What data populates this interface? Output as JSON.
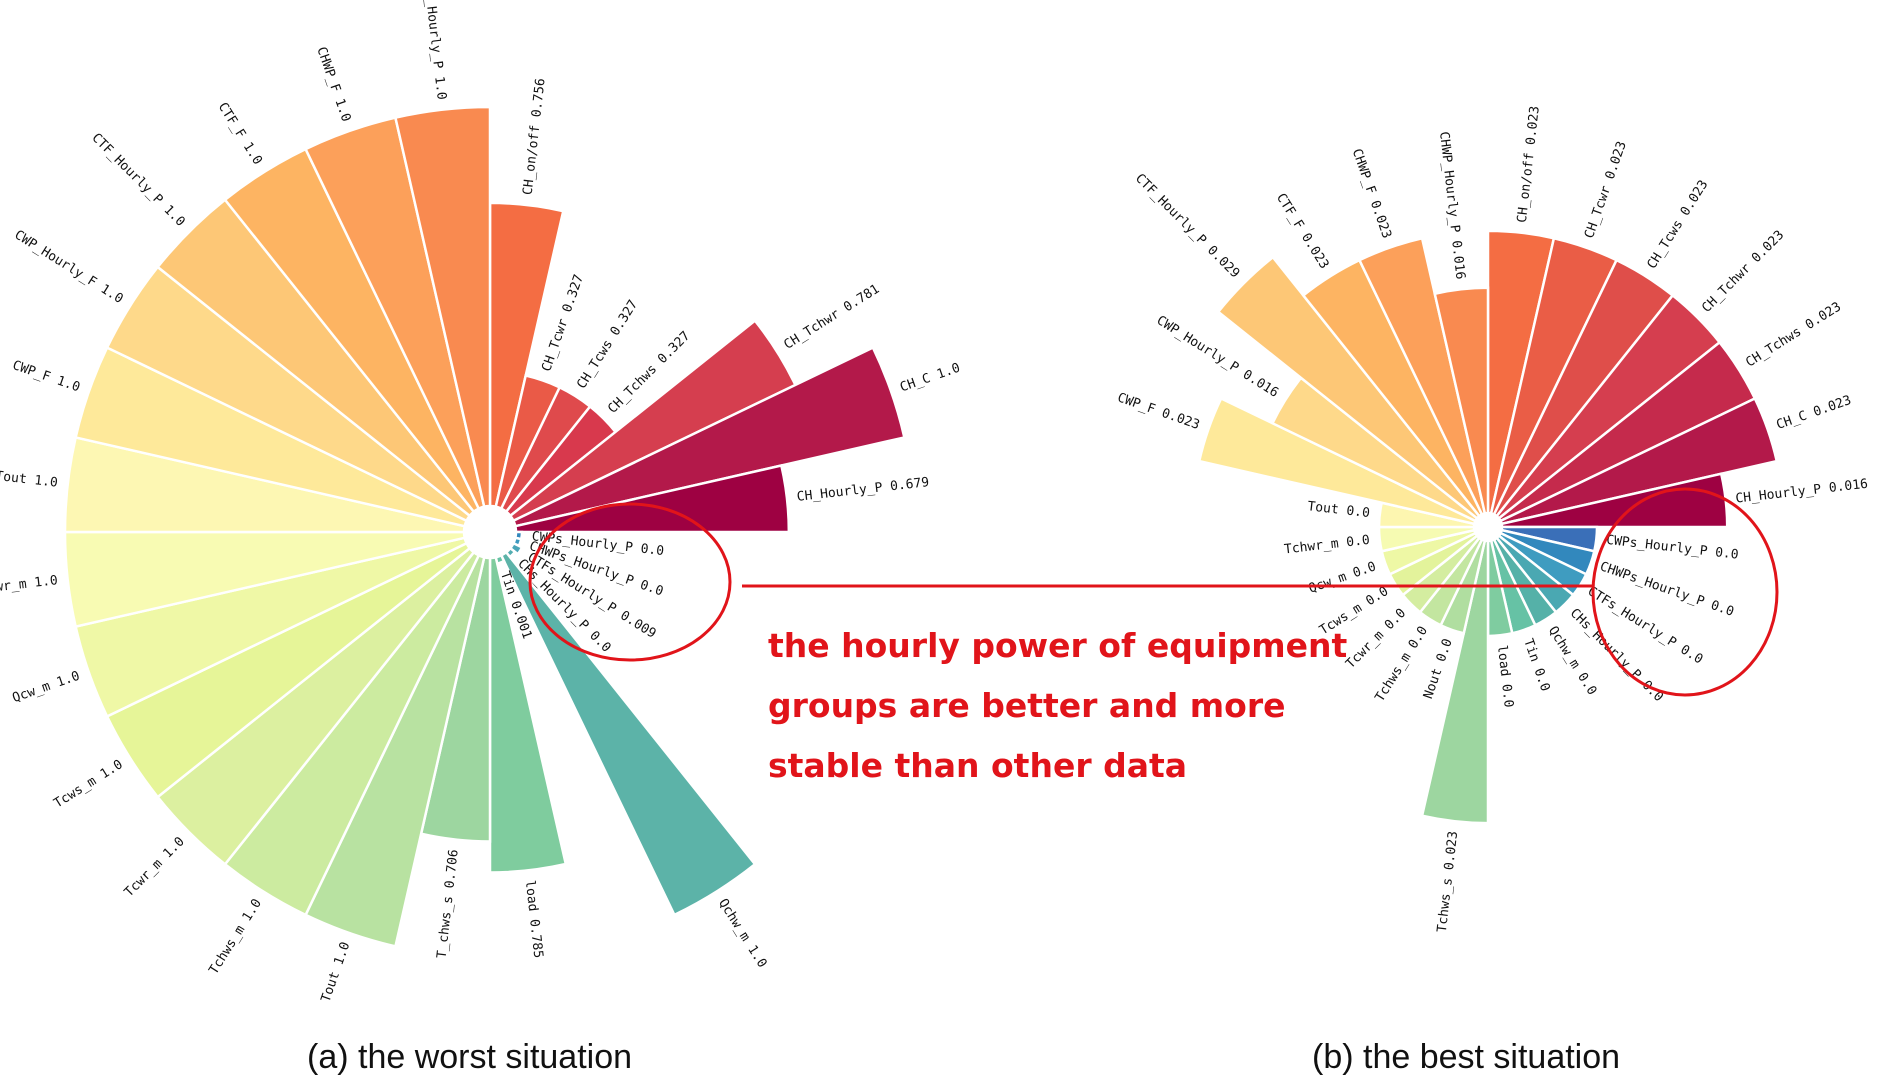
{
  "chart_data": [
    {
      "type": "polar-bar",
      "caption": "(a) the worst situation",
      "segments": [
        {
          "label": "CH_on/off",
          "value": 0.756,
          "value_text": "0.756",
          "color": "#f46d43"
        },
        {
          "label": "CH_Tcwr",
          "value": 0.327,
          "value_text": "0.327",
          "color": "#ea5a47"
        },
        {
          "label": "CH_Tcws",
          "value": 0.327,
          "value_text": "0.327",
          "color": "#df4a4c"
        },
        {
          "label": "CH_Tchws",
          "value": 0.327,
          "value_text": "0.327",
          "color": "#d8394d"
        },
        {
          "label": "CH_Tchwr",
          "value": 0.781,
          "value_text": "0.781",
          "color": "#d53e4f"
        },
        {
          "label": "CH_C",
          "value": 1.0,
          "value_text": "1.0",
          "color": "#b3194a"
        },
        {
          "label": "CH_Hourly_P",
          "value": 0.679,
          "value_text": "0.679",
          "color": "#9e0142"
        },
        {
          "label": "CWPs_Hourly_P",
          "value": 0.0,
          "value_text": "0.0",
          "color": "#3288bd"
        },
        {
          "label": "CHWPs_Hourly_P",
          "value": 0.0,
          "value_text": "0.0",
          "color": "#3d99c0"
        },
        {
          "label": "CTFs_Hourly_P",
          "value": 0.009,
          "value_text": "0.009",
          "color": "#4aa5b8"
        },
        {
          "label": "CHs_Hourly_P",
          "value": 0.0,
          "value_text": "0.0",
          "color": "#52adb0"
        },
        {
          "label": "Qchw_m",
          "value": 1.0,
          "value_text": "1.0",
          "color": "#5cb3a8"
        },
        {
          "label": "Tin",
          "value": 0.001,
          "value_text": "0.001",
          "color": "#66c2a5"
        },
        {
          "label": "load",
          "value": 0.785,
          "value_text": "0.785",
          "color": "#7fcc9e"
        },
        {
          "label": "T_chws_s",
          "value": 0.706,
          "value_text": "0.706",
          "color": "#9dd6a0"
        },
        {
          "label": "Tout",
          "value": 1.0,
          "value_text": "1.0",
          "color": "#b8e2a1"
        },
        {
          "label": "Tchws_m",
          "value": 1.0,
          "value_text": "1.0",
          "color": "#cceba0"
        },
        {
          "label": "Tcwr_m",
          "value": 1.0,
          "value_text": "1.0",
          "color": "#dcf0a0"
        },
        {
          "label": "Tcws_m",
          "value": 1.0,
          "value_text": "1.0",
          "color": "#e6f598"
        },
        {
          "label": "Qcw_m",
          "value": 1.0,
          "value_text": "1.0",
          "color": "#eff8a6"
        },
        {
          "label": "Tchwr_m",
          "value": 1.0,
          "value_text": "1.0",
          "color": "#f8fbb3"
        },
        {
          "label": "Tout",
          "value": 1.0,
          "value_text": "1.0",
          "color": "#fdf7b3"
        },
        {
          "label": "CWP_F",
          "value": 1.0,
          "value_text": "1.0",
          "color": "#fee99a"
        },
        {
          "label": "CWP_Hourly_F",
          "value": 1.0,
          "value_text": "1.0",
          "color": "#fed98a"
        },
        {
          "label": "CTF_Hourly_P",
          "value": 1.0,
          "value_text": "1.0",
          "color": "#fdc776"
        },
        {
          "label": "CTF_F",
          "value": 1.0,
          "value_text": "1.0",
          "color": "#fdb462"
        },
        {
          "label": "CHWP_F",
          "value": 1.0,
          "value_text": "1.0",
          "color": "#fca05a"
        },
        {
          "label": "CHWP_Hourly_P",
          "value": 1.0,
          "value_text": "1.0",
          "color": "#f98a50"
        }
      ]
    },
    {
      "type": "polar-bar",
      "caption": "(b) the best situation",
      "segments": [
        {
          "label": "CH_on/off",
          "value": 0.023,
          "value_text": "0.023",
          "color": "#f46d43"
        },
        {
          "label": "CH_Tcwr",
          "value": 0.023,
          "value_text": "0.023",
          "color": "#ea5d46"
        },
        {
          "label": "CH_Tcws",
          "value": 0.023,
          "value_text": "0.023",
          "color": "#df4e4a"
        },
        {
          "label": "CH_Tchwr",
          "value": 0.023,
          "value_text": "0.023",
          "color": "#d53e4f"
        },
        {
          "label": "CH_Tchws",
          "value": 0.023,
          "value_text": "0.023",
          "color": "#c52a4c"
        },
        {
          "label": "CH_C",
          "value": 0.023,
          "value_text": "0.023",
          "color": "#b3194a"
        },
        {
          "label": "CH_Hourly_P",
          "value": 0.016,
          "value_text": "0.016",
          "color": "#9e0142"
        },
        {
          "label": "CWPs_Hourly_P",
          "value": 0.0,
          "value_text": "0.0",
          "color": "#3a6fb8"
        },
        {
          "label": "CHWPs_Hourly_P",
          "value": 0.0,
          "value_text": "0.0",
          "color": "#3288bd"
        },
        {
          "label": "CTFs_Hourly_P",
          "value": 0.0,
          "value_text": "0.0",
          "color": "#3f9cc0"
        },
        {
          "label": "CHs_Hourly_P",
          "value": 0.0,
          "value_text": "0.0",
          "color": "#4aa8b2"
        },
        {
          "label": "Qchw_m",
          "value": 0.0,
          "value_text": "0.0",
          "color": "#55b1a8"
        },
        {
          "label": "Tin",
          "value": 0.0,
          "value_text": "0.0",
          "color": "#66c2a5"
        },
        {
          "label": "load",
          "value": 0.0,
          "value_text": "0.0",
          "color": "#7fcca0"
        },
        {
          "label": "Tchws_s",
          "value": 0.023,
          "value_text": "0.023",
          "color": "#9dd6a0"
        },
        {
          "label": "Nout",
          "value": 0.0,
          "value_text": "0.0",
          "color": "#b0dea0"
        },
        {
          "label": "Tchws_m",
          "value": 0.0,
          "value_text": "0.0",
          "color": "#c3e6a0"
        },
        {
          "label": "Tcwr_m",
          "value": 0.0,
          "value_text": "0.0",
          "color": "#d4eda0"
        },
        {
          "label": "Tcws_m",
          "value": 0.0,
          "value_text": "0.0",
          "color": "#e3f39b"
        },
        {
          "label": "Qcw_m",
          "value": 0.0,
          "value_text": "0.0",
          "color": "#eef8a5"
        },
        {
          "label": "Tchwr_m",
          "value": 0.0,
          "value_text": "0.0",
          "color": "#f6fbb2"
        },
        {
          "label": "Tout",
          "value": 0.0,
          "value_text": "0.0",
          "color": "#fdf6b0"
        },
        {
          "label": "CWP_F",
          "value": 0.023,
          "value_text": "0.023",
          "color": "#fee99a"
        },
        {
          "label": "CWP_Hourly_P",
          "value": 0.016,
          "value_text": "0.016",
          "color": "#fed98a"
        },
        {
          "label": "CTF_Hourly_P",
          "value": 0.029,
          "value_text": "0.029",
          "color": "#fdc776"
        },
        {
          "label": "CTF_F",
          "value": 0.023,
          "value_text": "0.023",
          "color": "#fdb462"
        },
        {
          "label": "CHWP_F",
          "value": 0.023,
          "value_text": "0.023",
          "color": "#fca05a"
        },
        {
          "label": "CHWP_Hourly_P",
          "value": 0.016,
          "value_text": "0.016",
          "color": "#f98a50"
        }
      ]
    }
  ],
  "annotation": {
    "lines": [
      "the hourly power of equipment",
      "groups are better and more",
      "stable than other data"
    ],
    "color": "#e1141a"
  }
}
